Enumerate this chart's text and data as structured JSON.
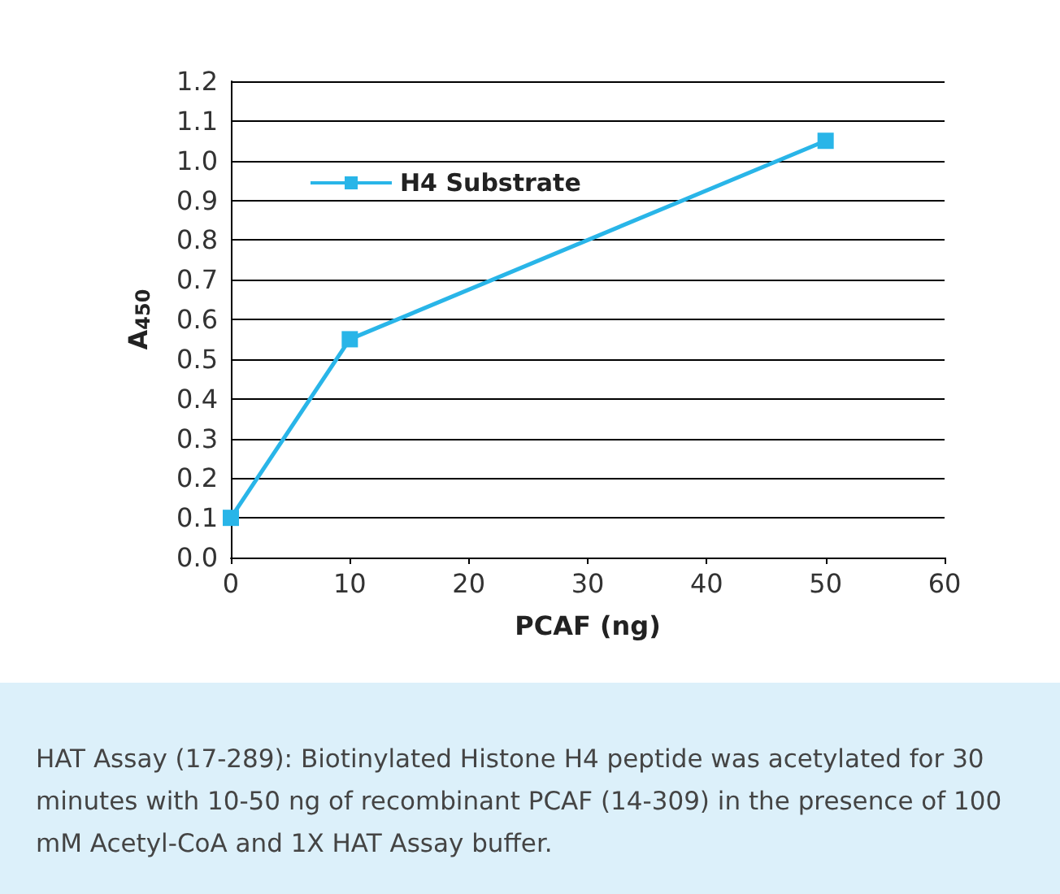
{
  "chart_data": {
    "type": "line",
    "xlabel": "PCAF (ng)",
    "ylabel": "A$_{450}$",
    "x": [
      0,
      10,
      50
    ],
    "series": [
      {
        "name": "H4 Substrate",
        "color": "#29b5e8",
        "values": [
          0.1,
          0.55,
          1.05
        ]
      }
    ],
    "xlim": [
      0,
      60
    ],
    "xticks": [
      0,
      10,
      20,
      30,
      40,
      50,
      60
    ],
    "ylim": [
      0,
      1.2
    ],
    "yticks": [
      {
        "value": 0,
        "label": "0.0"
      },
      0.1,
      0.2,
      0.3,
      0.4,
      0.5,
      0.6,
      0.7,
      0.8,
      0.9,
      {
        "value": 1,
        "label": "1.0"
      },
      1.1,
      1.2
    ],
    "grid": "y",
    "legend": "top left",
    "marker": "square",
    "line_style": "solid",
    "annotations": [
      "HAT Assay (17-289): Biotinylated Histone H4 peptide was acetylated for 30 minutes with 10-50 ng of recombinant PCAF (14-309) in the presence of 100 mM Acetyl-CoA and 1X HAT Assay buffer."
    ]
  }
}
